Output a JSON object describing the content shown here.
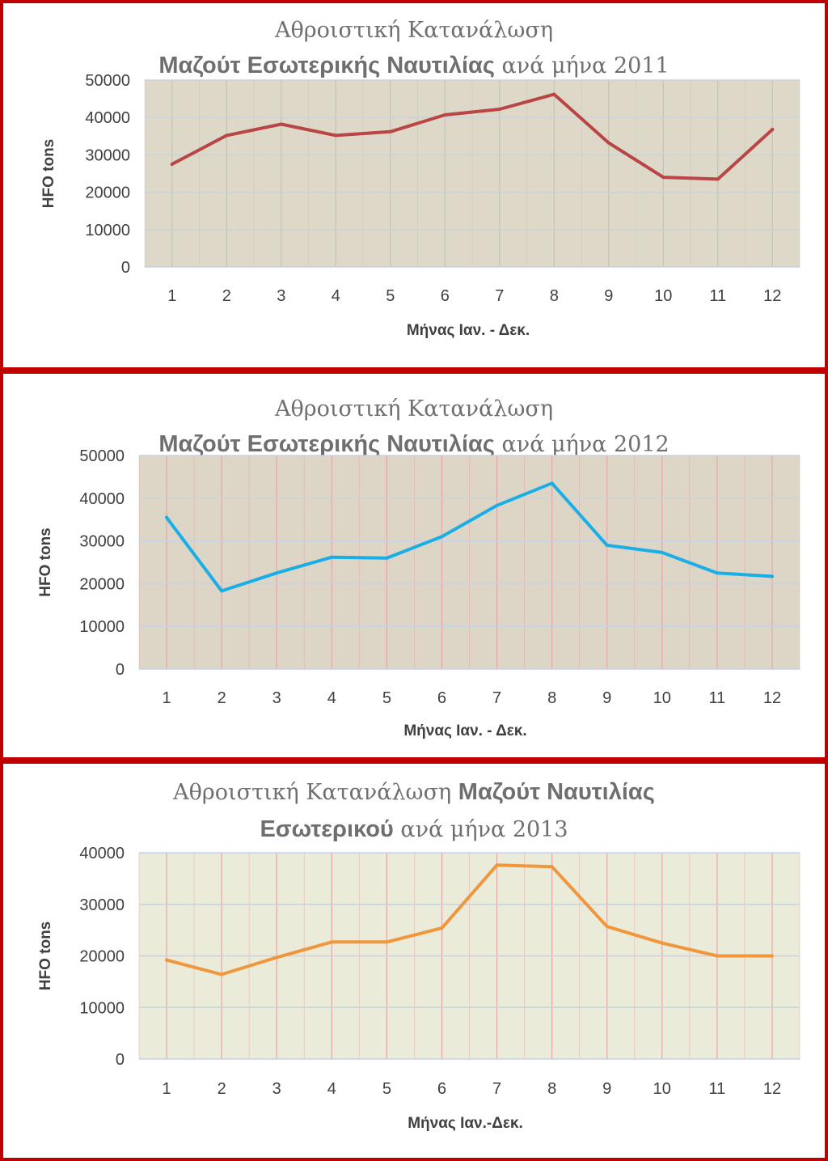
{
  "chart_data": [
    {
      "type": "line",
      "title_lines": [
        [
          {
            "text": "Αθροιστική Κατανάλωση",
            "style": "serif"
          }
        ],
        [
          {
            "text": "Μαζούτ Εσωτερικής Ναυτιλίας",
            "style": "bold"
          },
          {
            "text": " ανά μήνα 2011",
            "style": "serif"
          }
        ]
      ],
      "xlabel": "Μήνας Ιαν. - Δεκ.",
      "ylabel": "HFO  tons",
      "categories": [
        "1",
        "2",
        "3",
        "4",
        "5",
        "6",
        "7",
        "8",
        "9",
        "10",
        "11",
        "12"
      ],
      "values": [
        27500,
        35200,
        38200,
        35200,
        36200,
        40700,
        42200,
        46200,
        33200,
        24000,
        23500,
        36800
      ],
      "ylim": [
        0,
        50000
      ],
      "yticks": [
        "0",
        "10000",
        "20000",
        "30000",
        "40000",
        "50000"
      ],
      "colors": {
        "line": "#b94545",
        "plot_bg": "#ddd8c8",
        "hgrid": "#c6d2e6",
        "vgrid": "#c5c1b6"
      }
    },
    {
      "type": "line",
      "title_lines": [
        [
          {
            "text": "Αθροιστική Κατανάλωση",
            "style": "serif"
          }
        ],
        [
          {
            "text": "Μαζούτ Εσωτερικής Ναυτιλίας",
            "style": "bold"
          },
          {
            "text": " ανά μήνα 2012",
            "style": "serif"
          }
        ]
      ],
      "xlabel": "Μήνας Ιαν. - Δεκ.",
      "ylabel": "HFO  tons",
      "categories": [
        "1",
        "2",
        "3",
        "4",
        "5",
        "6",
        "7",
        "8",
        "9",
        "10",
        "11",
        "12"
      ],
      "values": [
        35500,
        18300,
        22500,
        26200,
        26000,
        31000,
        38300,
        43500,
        29000,
        27300,
        22500,
        21700
      ],
      "ylim": [
        0,
        50000
      ],
      "yticks": [
        "0",
        "10000",
        "20000",
        "30000",
        "40000",
        "50000"
      ],
      "colors": {
        "line": "#19afe6",
        "plot_bg": "#ddd5c6",
        "hgrid": "#c6d2e6",
        "vgrid": "#e2a7a7"
      }
    },
    {
      "type": "line",
      "title_lines": [
        [
          {
            "text": "Αθροιστική Κατανάλωση ",
            "style": "serif"
          },
          {
            "text": "Μαζούτ Ναυτιλίας",
            "style": "bold"
          }
        ],
        [
          {
            "text": "Εσωτερικού",
            "style": "bold"
          },
          {
            "text": " ανά μήνα 2013",
            "style": "serif"
          }
        ]
      ],
      "xlabel": "Μήνας  Ιαν.-Δεκ.",
      "ylabel": "HFO tons",
      "categories": [
        "1",
        "2",
        "3",
        "4",
        "5",
        "6",
        "7",
        "8",
        "9",
        "10",
        "11",
        "12"
      ],
      "values": [
        19200,
        16400,
        19700,
        22700,
        22700,
        25400,
        37600,
        37300,
        25700,
        22500,
        20000,
        20000
      ],
      "ylim": [
        0,
        40000
      ],
      "yticks": [
        "0",
        "10000",
        "20000",
        "30000",
        "40000"
      ],
      "colors": {
        "line": "#f0963c",
        "plot_bg": "#ebebda",
        "hgrid": "#c6d2e6",
        "vgrid": "#e2a7a7"
      }
    }
  ]
}
